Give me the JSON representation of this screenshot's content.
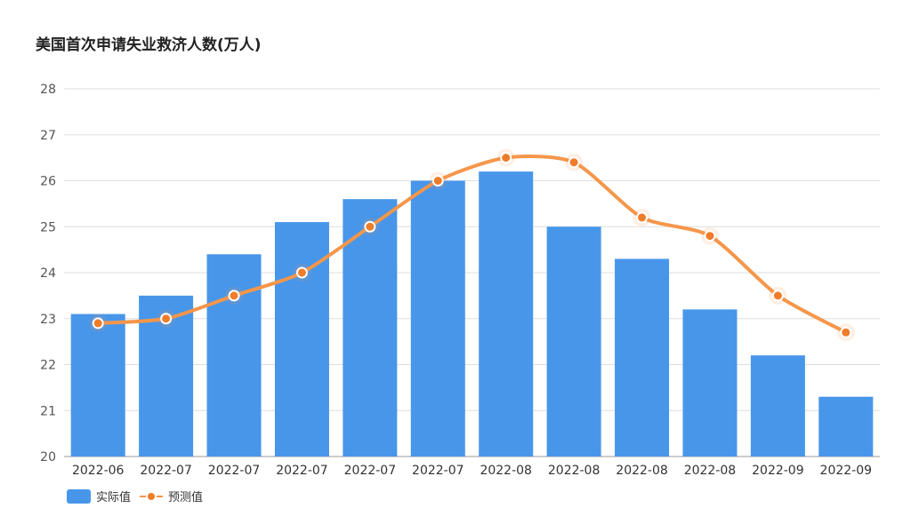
{
  "chart_data": {
    "type": "bar",
    "title": "美国首次申请失业救济人数(万人)",
    "categories": [
      "2022-06",
      "2022-07",
      "2022-07",
      "2022-07",
      "2022-07",
      "2022-07",
      "2022-08",
      "2022-08",
      "2022-08",
      "2022-08",
      "2022-09",
      "2022-09"
    ],
    "series": [
      {
        "name": "实际值",
        "type": "bar",
        "color": "#4796ea",
        "values": [
          23.1,
          23.5,
          24.4,
          25.1,
          25.6,
          26.0,
          26.2,
          25.0,
          24.3,
          23.2,
          22.2,
          21.3
        ]
      },
      {
        "name": "预测值",
        "type": "line",
        "color": "#f5964a",
        "marker_color": "#f07c2a",
        "values": [
          22.9,
          23.0,
          23.5,
          24.0,
          25.0,
          26.0,
          26.5,
          26.4,
          25.2,
          24.8,
          23.5,
          22.7
        ]
      }
    ],
    "ylim": [
      20,
      28
    ],
    "yticks": [
      "20",
      "21",
      "22",
      "23",
      "24",
      "25",
      "26",
      "27",
      "28"
    ],
    "xlabel": "",
    "ylabel": "",
    "grid": true,
    "legend_position": "bottom-left"
  }
}
